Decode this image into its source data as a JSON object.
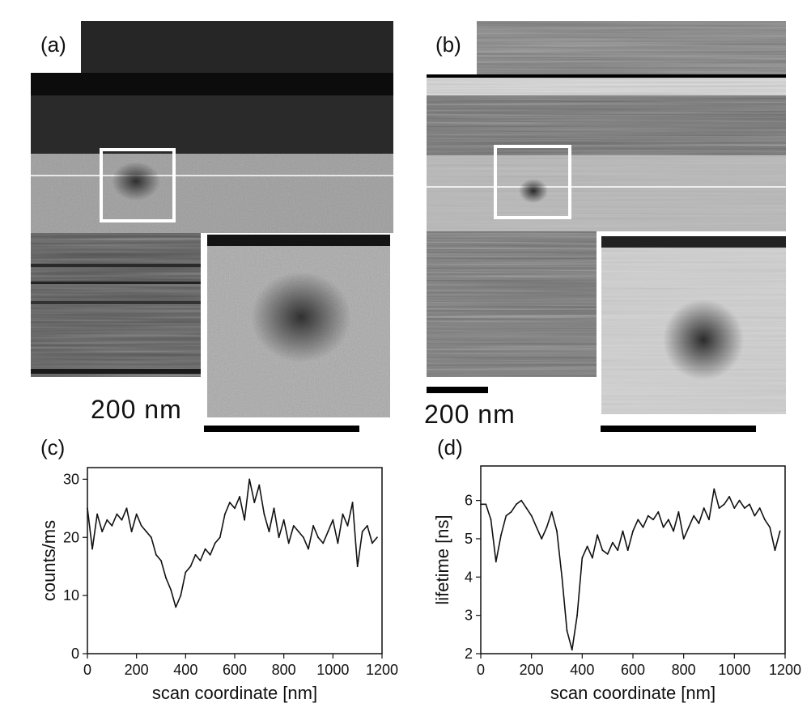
{
  "labels": {
    "a": "(a)",
    "b": "(b)",
    "c": "(c)",
    "d": "(d)"
  },
  "scale_bar_a": "200 nm",
  "scale_bar_b": "200 nm",
  "colors": {
    "trace": "#111111",
    "frame": "#ffffff"
  },
  "chart_data": [
    {
      "type": "line",
      "panel": "(c)",
      "xlabel": "scan coordinate [nm]",
      "ylabel": "counts/ms",
      "xlim": [
        0,
        1200
      ],
      "ylim": [
        0,
        32
      ],
      "xticks": [
        0,
        200,
        400,
        600,
        800,
        1000,
        1200
      ],
      "yticks": [
        0,
        10,
        20,
        30
      ],
      "x": [
        0,
        20,
        40,
        60,
        80,
        100,
        120,
        140,
        160,
        180,
        200,
        220,
        240,
        260,
        280,
        300,
        320,
        340,
        360,
        380,
        400,
        420,
        440,
        460,
        480,
        500,
        520,
        540,
        560,
        580,
        600,
        620,
        640,
        660,
        680,
        700,
        720,
        740,
        760,
        780,
        800,
        820,
        840,
        860,
        880,
        900,
        920,
        940,
        960,
        980,
        1000,
        1020,
        1040,
        1060,
        1080,
        1100,
        1120,
        1140,
        1160,
        1180
      ],
      "y": [
        25,
        18,
        24,
        21,
        23,
        22,
        24,
        23,
        25,
        21,
        24,
        22,
        21,
        20,
        17,
        16,
        13,
        11,
        8,
        10,
        14,
        15,
        17,
        16,
        18,
        17,
        19,
        20,
        24,
        26,
        25,
        27,
        23,
        30,
        26,
        29,
        24,
        21,
        25,
        20,
        23,
        19,
        22,
        21,
        20,
        18,
        22,
        20,
        19,
        21,
        23,
        19,
        24,
        22,
        26,
        15,
        21,
        22,
        19,
        20
      ]
    },
    {
      "type": "line",
      "panel": "(d)",
      "xlabel": "scan coordinate [nm]",
      "ylabel": "lifetime [ns]",
      "xlim": [
        0,
        1200
      ],
      "ylim": [
        2,
        6.9
      ],
      "xticks": [
        0,
        200,
        400,
        600,
        800,
        1000,
        1200
      ],
      "yticks": [
        2,
        3,
        4,
        5,
        6
      ],
      "x": [
        0,
        20,
        40,
        60,
        80,
        100,
        120,
        140,
        160,
        180,
        200,
        220,
        240,
        260,
        280,
        300,
        320,
        340,
        360,
        380,
        400,
        420,
        440,
        460,
        480,
        500,
        520,
        540,
        560,
        580,
        600,
        620,
        640,
        660,
        680,
        700,
        720,
        740,
        760,
        780,
        800,
        820,
        840,
        860,
        880,
        900,
        920,
        940,
        960,
        980,
        1000,
        1020,
        1040,
        1060,
        1080,
        1100,
        1120,
        1140,
        1160,
        1180
      ],
      "y": [
        5.9,
        5.9,
        5.5,
        4.4,
        5.1,
        5.6,
        5.7,
        5.9,
        6.0,
        5.8,
        5.6,
        5.3,
        5.0,
        5.3,
        5.7,
        5.2,
        4.0,
        2.6,
        2.1,
        3.0,
        4.5,
        4.8,
        4.5,
        5.1,
        4.7,
        4.6,
        4.9,
        4.7,
        5.2,
        4.7,
        5.2,
        5.5,
        5.3,
        5.6,
        5.5,
        5.7,
        5.3,
        5.5,
        5.2,
        5.7,
        5.0,
        5.3,
        5.6,
        5.4,
        5.8,
        5.5,
        6.3,
        5.8,
        5.9,
        6.1,
        5.8,
        6.0,
        5.8,
        5.9,
        5.6,
        5.8,
        5.5,
        5.3,
        4.7,
        5.2
      ]
    }
  ]
}
